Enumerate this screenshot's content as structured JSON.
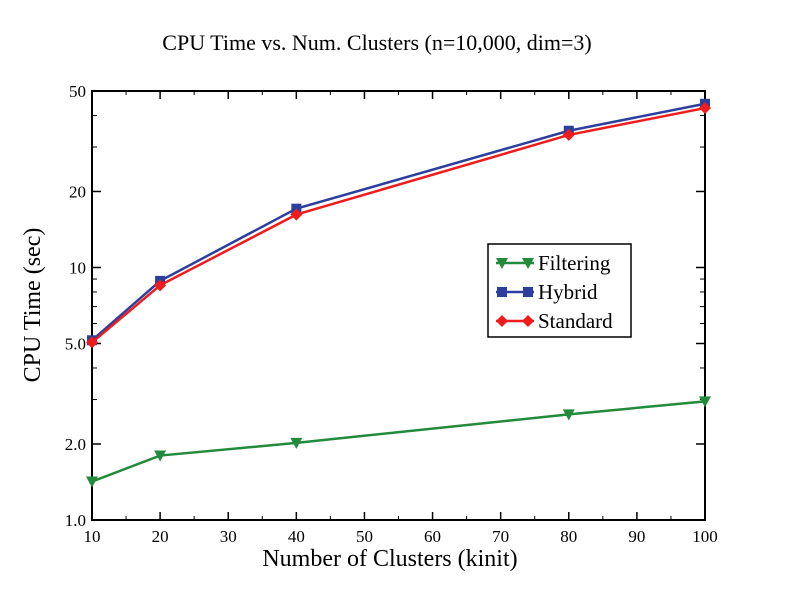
{
  "chart_data": {
    "type": "line",
    "title": "CPU Time vs. Num. Clusters (n=10,000, dim=3)",
    "xlabel": "Number of Clusters (kinit)",
    "ylabel": "CPU Time (sec)",
    "xlim": [
      10,
      100
    ],
    "ylim": [
      1.0,
      50
    ],
    "yscale": "log",
    "grid": false,
    "legend_position": "center-right",
    "xticks": [
      10,
      20,
      30,
      40,
      50,
      60,
      70,
      80,
      90,
      100
    ],
    "xtick_labels": [
      "10",
      "20",
      "30",
      "40",
      "50",
      "60",
      "70",
      "80",
      "90",
      "100"
    ],
    "yticks": [
      1.0,
      2.0,
      5.0,
      10,
      20,
      50
    ],
    "ytick_labels": [
      "1.0",
      "2.0",
      "5.0",
      "10",
      "20",
      "50"
    ],
    "series": [
      {
        "name": "Filtering",
        "color": "#228b3b",
        "marker": "triangle-down",
        "x": [
          10,
          20,
          40,
          80,
          100
        ],
        "y": [
          1.42,
          1.8,
          2.02,
          2.62,
          2.95
        ]
      },
      {
        "name": "Hybrid",
        "color": "#2c3e9e",
        "marker": "square",
        "x": [
          10,
          20,
          40,
          80,
          100
        ],
        "y": [
          5.15,
          8.85,
          17.1,
          34.8,
          44.5
        ]
      },
      {
        "name": "Standard",
        "color": "#ee1c1c",
        "marker": "diamond",
        "x": [
          10,
          20,
          40,
          80,
          100
        ],
        "y": [
          5.05,
          8.5,
          16.2,
          33.5,
          42.8
        ]
      }
    ]
  }
}
